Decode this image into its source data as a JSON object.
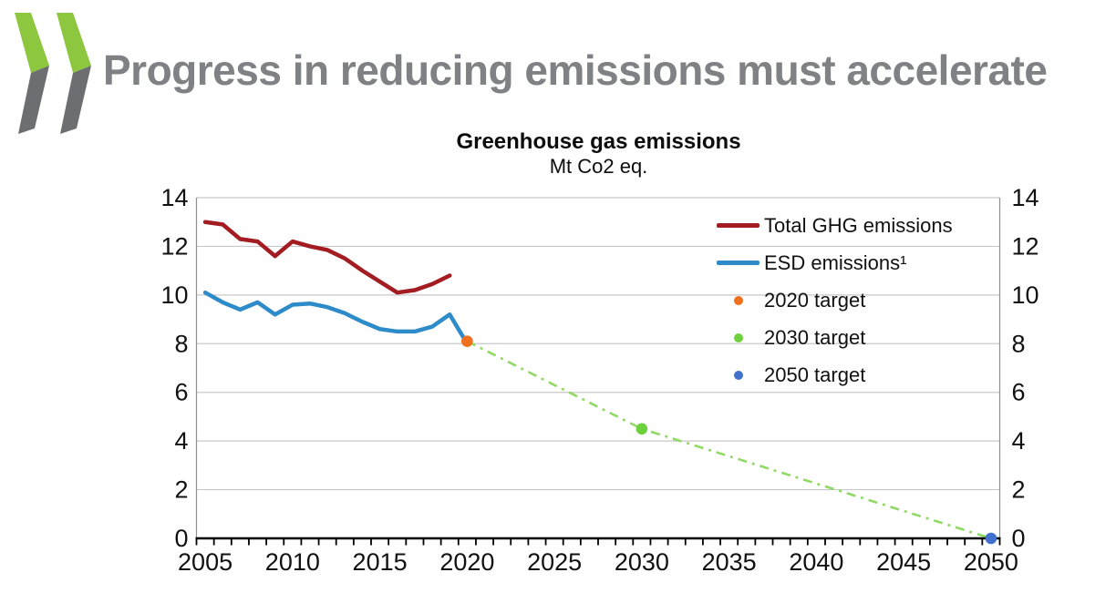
{
  "header": {
    "title": "Progress in reducing emissions must accelerate",
    "title_color": "#7F8184",
    "logo": {
      "green": "#8DC63F",
      "gray": "#6D6E71"
    }
  },
  "chart_data": {
    "type": "line",
    "title": "Greenhouse gas emissions",
    "subtitle": "Mt Co2 eq.",
    "xlabel": "",
    "ylabel": "",
    "xlim": [
      2004.5,
      2050.5
    ],
    "ylim": [
      0,
      14
    ],
    "y_ticks": [
      0,
      2,
      4,
      6,
      8,
      10,
      12,
      14
    ],
    "x_tick_labels": [
      2005,
      2010,
      2015,
      2020,
      2025,
      2030,
      2035,
      2040,
      2045,
      2050
    ],
    "minor_x_tick_every_years": 1,
    "grid": "horizontal",
    "dual_y_axis": true,
    "legend_position": "inside-top-right",
    "series": [
      {
        "name": "Total GHG emissions",
        "color": "#A21C21",
        "style": "solid",
        "x": [
          2005,
          2006,
          2007,
          2008,
          2009,
          2010,
          2011,
          2012,
          2013,
          2014,
          2015,
          2016,
          2017,
          2018,
          2019
        ],
        "values": [
          13.0,
          12.9,
          12.3,
          12.2,
          11.6,
          12.2,
          12.0,
          11.85,
          11.5,
          11.0,
          10.55,
          10.1,
          10.2,
          10.45,
          10.8
        ]
      },
      {
        "name": "ESD emissions¹",
        "color": "#2E8BC9",
        "style": "solid",
        "x": [
          2005,
          2006,
          2007,
          2008,
          2009,
          2010,
          2011,
          2012,
          2013,
          2014,
          2015,
          2016,
          2017,
          2018,
          2019,
          2020
        ],
        "values": [
          10.1,
          9.7,
          9.4,
          9.7,
          9.2,
          9.6,
          9.65,
          9.5,
          9.25,
          8.9,
          8.6,
          8.5,
          8.5,
          8.7,
          9.2,
          8.0
        ]
      }
    ],
    "projection": {
      "color": "#8FD964",
      "style": "dash-dot",
      "x": [
        2020,
        2030,
        2050
      ],
      "values": [
        8.1,
        4.5,
        0
      ]
    },
    "targets": [
      {
        "label": "2020 target",
        "x": 2020,
        "value": 8.1,
        "color": "#F0701D"
      },
      {
        "label": "2030 target",
        "x": 2030,
        "value": 4.5,
        "color": "#6CD13C"
      },
      {
        "label": "2050 target",
        "x": 2050,
        "value": 0,
        "color": "#4170CE"
      }
    ],
    "legend": [
      {
        "label": "Total GHG emissions",
        "swatch": "line",
        "color": "#A21C21"
      },
      {
        "label": "ESD emissions¹",
        "swatch": "line",
        "color": "#2E8BC9"
      },
      {
        "label": "2020 target",
        "swatch": "dot",
        "color": "#F0701D"
      },
      {
        "label": "2030 target",
        "swatch": "dot",
        "color": "#6CD13C"
      },
      {
        "label": "2050 target",
        "swatch": "dot",
        "color": "#4170CE"
      }
    ]
  }
}
